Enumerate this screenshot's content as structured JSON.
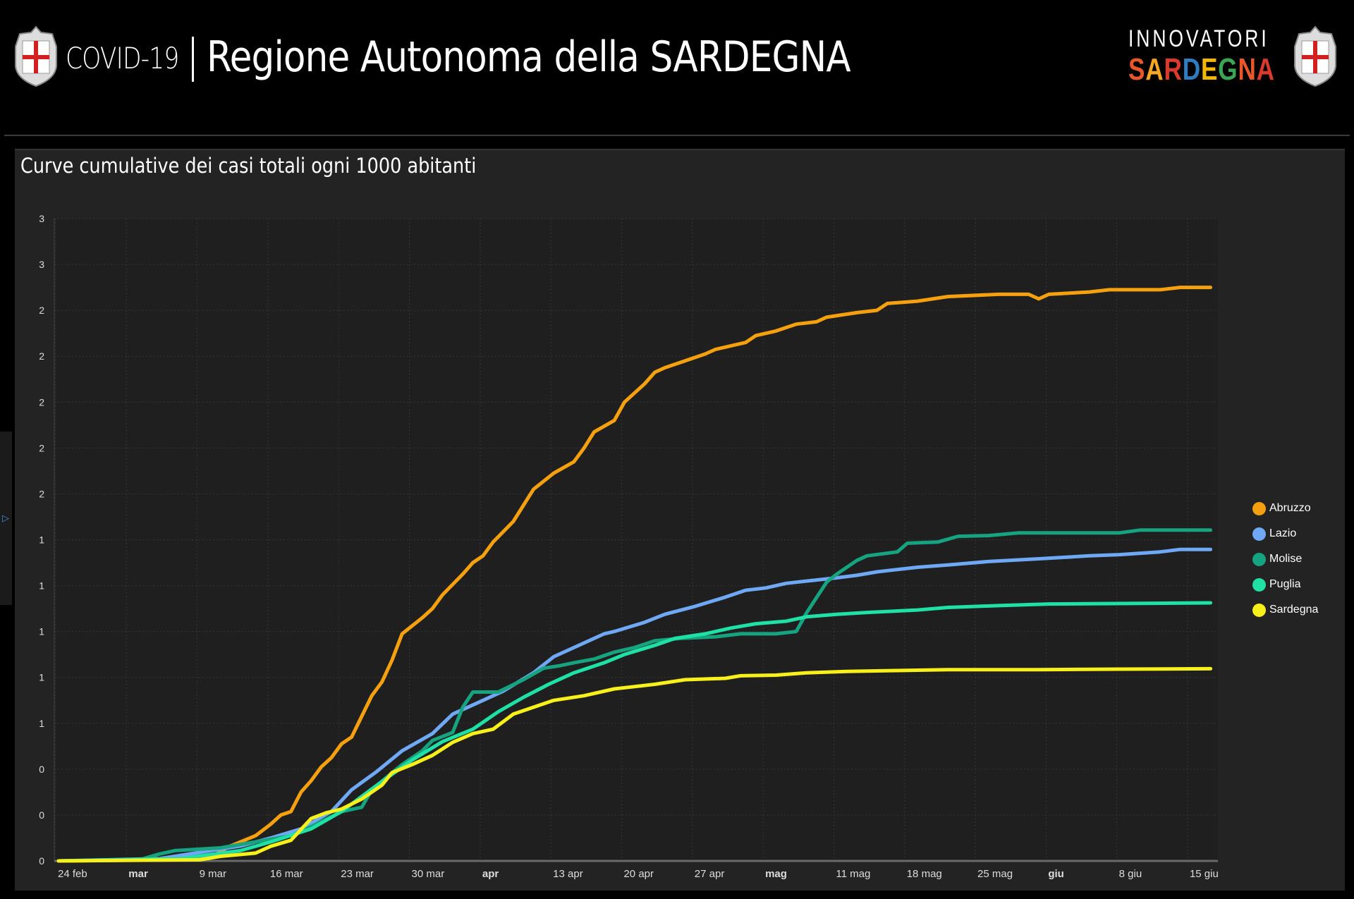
{
  "header": {
    "covid_label": "COVID-19",
    "title": "Regione Autonoma della SARDEGNA",
    "logo_top": "INNOVATORI",
    "logo_bottom": "SARDEGNA",
    "logo_bottom_colors": [
      "#e8572a",
      "#f5a623",
      "#d93a2b",
      "#2f7dc1",
      "#f2b705",
      "#3aa655",
      "#e8572a",
      "#d93a2b"
    ]
  },
  "chart_data": {
    "type": "line",
    "title": "Curve cumulative dei casi totali ogni 1000 abitanti",
    "xlabel": "",
    "ylabel": "",
    "x_unit": "days since 24 feb",
    "xlim": [
      0,
      118
    ],
    "ylim": [
      0,
      2.8
    ],
    "grid": true,
    "legend_position": "right",
    "y_ticks": [
      {
        "value": 0,
        "label": "0"
      },
      {
        "value": 0.2,
        "label": "0"
      },
      {
        "value": 0.4,
        "label": "0"
      },
      {
        "value": 0.6,
        "label": "1"
      },
      {
        "value": 0.8,
        "label": "1"
      },
      {
        "value": 1.0,
        "label": "1"
      },
      {
        "value": 1.2,
        "label": "1"
      },
      {
        "value": 1.4,
        "label": "1"
      },
      {
        "value": 1.6,
        "label": "2"
      },
      {
        "value": 1.8,
        "label": "2"
      },
      {
        "value": 2.0,
        "label": "2"
      },
      {
        "value": 2.2,
        "label": "2"
      },
      {
        "value": 2.4,
        "label": "2"
      },
      {
        "value": 2.6,
        "label": "3"
      },
      {
        "value": 2.8,
        "label": "3"
      }
    ],
    "x_ticks": [
      {
        "day": 0,
        "label": "24 feb",
        "bold": false
      },
      {
        "day": 7,
        "label": "mar",
        "bold": true
      },
      {
        "day": 14,
        "label": "9 mar",
        "bold": false
      },
      {
        "day": 21,
        "label": "16 mar",
        "bold": false
      },
      {
        "day": 28,
        "label": "23 mar",
        "bold": false
      },
      {
        "day": 35,
        "label": "30 mar",
        "bold": false
      },
      {
        "day": 42,
        "label": "apr",
        "bold": true
      },
      {
        "day": 49,
        "label": "13 apr",
        "bold": false
      },
      {
        "day": 56,
        "label": "20 apr",
        "bold": false
      },
      {
        "day": 63,
        "label": "27 apr",
        "bold": false
      },
      {
        "day": 70,
        "label": "mag",
        "bold": true
      },
      {
        "day": 77,
        "label": "11 mag",
        "bold": false
      },
      {
        "day": 84,
        "label": "18 mag",
        "bold": false
      },
      {
        "day": 91,
        "label": "25 mag",
        "bold": false
      },
      {
        "day": 98,
        "label": "giu",
        "bold": true
      },
      {
        "day": 105,
        "label": "8 giu",
        "bold": false
      },
      {
        "day": 112,
        "label": "15 giu",
        "bold": false
      }
    ],
    "series": [
      {
        "name": "Abruzzo",
        "color": "#f5a00f",
        "points": [
          [
            0,
            0
          ],
          [
            10,
            0.005
          ],
          [
            15,
            0.015
          ],
          [
            17,
            0.065
          ],
          [
            19.5,
            0.11
          ],
          [
            21,
            0.16
          ],
          [
            22,
            0.2
          ],
          [
            23,
            0.215
          ],
          [
            24,
            0.3
          ],
          [
            25,
            0.35
          ],
          [
            26,
            0.41
          ],
          [
            27,
            0.45
          ],
          [
            28,
            0.51
          ],
          [
            29,
            0.54
          ],
          [
            30,
            0.63
          ],
          [
            31,
            0.72
          ],
          [
            32,
            0.78
          ],
          [
            33,
            0.875
          ],
          [
            34,
            0.99
          ],
          [
            36,
            1.06
          ],
          [
            37,
            1.1
          ],
          [
            38,
            1.16
          ],
          [
            40,
            1.25
          ],
          [
            41,
            1.3
          ],
          [
            42,
            1.33
          ],
          [
            43,
            1.39
          ],
          [
            45,
            1.48
          ],
          [
            47,
            1.62
          ],
          [
            49,
            1.69
          ],
          [
            51,
            1.74
          ],
          [
            52,
            1.8
          ],
          [
            53,
            1.87
          ],
          [
            55,
            1.92
          ],
          [
            56,
            2.0
          ],
          [
            58,
            2.08
          ],
          [
            59,
            2.13
          ],
          [
            60,
            2.15
          ],
          [
            62,
            2.18
          ],
          [
            64,
            2.21
          ],
          [
            65,
            2.23
          ],
          [
            68,
            2.26
          ],
          [
            69,
            2.29
          ],
          [
            71,
            2.31
          ],
          [
            73,
            2.34
          ],
          [
            75,
            2.35
          ],
          [
            76,
            2.37
          ],
          [
            79,
            2.39
          ],
          [
            81,
            2.4
          ],
          [
            82,
            2.43
          ],
          [
            85,
            2.44
          ],
          [
            88,
            2.46
          ],
          [
            93,
            2.47
          ],
          [
            96,
            2.47
          ],
          [
            97,
            2.45
          ],
          [
            98,
            2.47
          ],
          [
            102,
            2.48
          ],
          [
            104,
            2.49
          ],
          [
            109,
            2.49
          ],
          [
            111,
            2.5
          ],
          [
            114,
            2.5
          ]
        ]
      },
      {
        "name": "Lazio",
        "color": "#6fa8f5",
        "points": [
          [
            0,
            0
          ],
          [
            10,
            0.01
          ],
          [
            18,
            0.065
          ],
          [
            21,
            0.1
          ],
          [
            24,
            0.14
          ],
          [
            27,
            0.215
          ],
          [
            29,
            0.31
          ],
          [
            31.5,
            0.39
          ],
          [
            34,
            0.48
          ],
          [
            37,
            0.555
          ],
          [
            39,
            0.64
          ],
          [
            42,
            0.7
          ],
          [
            44,
            0.74
          ],
          [
            47,
            0.82
          ],
          [
            49,
            0.89
          ],
          [
            52,
            0.95
          ],
          [
            54,
            0.99
          ],
          [
            55,
            1.0
          ],
          [
            58,
            1.04
          ],
          [
            60,
            1.075
          ],
          [
            63,
            1.11
          ],
          [
            66,
            1.15
          ],
          [
            68,
            1.18
          ],
          [
            70,
            1.19
          ],
          [
            72,
            1.21
          ],
          [
            74,
            1.22
          ],
          [
            77,
            1.234
          ],
          [
            79,
            1.245
          ],
          [
            81,
            1.26
          ],
          [
            85,
            1.28
          ],
          [
            88,
            1.29
          ],
          [
            92,
            1.305
          ],
          [
            97,
            1.317
          ],
          [
            102,
            1.33
          ],
          [
            105,
            1.335
          ],
          [
            109,
            1.347
          ],
          [
            111,
            1.358
          ],
          [
            114,
            1.358
          ]
        ]
      },
      {
        "name": "Molise",
        "color": "#16a37f",
        "points": [
          [
            0,
            0
          ],
          [
            8,
            0.005
          ],
          [
            10,
            0.03
          ],
          [
            11.5,
            0.045
          ],
          [
            16,
            0.057
          ],
          [
            19.5,
            0.083
          ],
          [
            23,
            0.11
          ],
          [
            25,
            0.15
          ],
          [
            28,
            0.215
          ],
          [
            30,
            0.234
          ],
          [
            31,
            0.31
          ],
          [
            32.5,
            0.366
          ],
          [
            34,
            0.42
          ],
          [
            36,
            0.48
          ],
          [
            37,
            0.525
          ],
          [
            39,
            0.56
          ],
          [
            40,
            0.67
          ],
          [
            41,
            0.736
          ],
          [
            43.5,
            0.736
          ],
          [
            46,
            0.79
          ],
          [
            48,
            0.84
          ],
          [
            49.5,
            0.85
          ],
          [
            51,
            0.864
          ],
          [
            53,
            0.88
          ],
          [
            55,
            0.91
          ],
          [
            57,
            0.93
          ],
          [
            59,
            0.96
          ],
          [
            61.5,
            0.97
          ],
          [
            65,
            0.977
          ],
          [
            67.5,
            0.99
          ],
          [
            71,
            0.99
          ],
          [
            73,
            1.0
          ],
          [
            74,
            1.08
          ],
          [
            76,
            1.215
          ],
          [
            77,
            1.25
          ],
          [
            79,
            1.31
          ],
          [
            80,
            1.33
          ],
          [
            83,
            1.347
          ],
          [
            84,
            1.385
          ],
          [
            87,
            1.39
          ],
          [
            89,
            1.415
          ],
          [
            92,
            1.418
          ],
          [
            95,
            1.43
          ],
          [
            105,
            1.43
          ],
          [
            107,
            1.442
          ],
          [
            114,
            1.442
          ]
        ]
      },
      {
        "name": "Puglia",
        "color": "#1fe0a5",
        "points": [
          [
            0,
            0
          ],
          [
            12,
            0.01
          ],
          [
            18,
            0.045
          ],
          [
            21,
            0.083
          ],
          [
            25,
            0.14
          ],
          [
            28,
            0.215
          ],
          [
            31.5,
            0.33
          ],
          [
            35,
            0.44
          ],
          [
            38,
            0.52
          ],
          [
            41,
            0.574
          ],
          [
            43.5,
            0.65
          ],
          [
            46,
            0.713
          ],
          [
            48.5,
            0.77
          ],
          [
            51,
            0.82
          ],
          [
            54,
            0.864
          ],
          [
            56,
            0.9
          ],
          [
            59,
            0.94
          ],
          [
            61,
            0.97
          ],
          [
            64,
            0.99
          ],
          [
            66.5,
            1.015
          ],
          [
            69,
            1.034
          ],
          [
            72,
            1.045
          ],
          [
            74,
            1.064
          ],
          [
            77,
            1.075
          ],
          [
            80,
            1.083
          ],
          [
            85,
            1.094
          ],
          [
            88,
            1.105
          ],
          [
            93,
            1.113
          ],
          [
            98,
            1.12
          ],
          [
            114,
            1.125
          ]
        ]
      },
      {
        "name": "Sardegna",
        "color": "#f7f01a",
        "points": [
          [
            0,
            0
          ],
          [
            14,
            0.005
          ],
          [
            16,
            0.02
          ],
          [
            19.5,
            0.034
          ],
          [
            21,
            0.064
          ],
          [
            23,
            0.09
          ],
          [
            25,
            0.185
          ],
          [
            26.5,
            0.21
          ],
          [
            28,
            0.226
          ],
          [
            30,
            0.27
          ],
          [
            32,
            0.33
          ],
          [
            33,
            0.385
          ],
          [
            35,
            0.42
          ],
          [
            37,
            0.46
          ],
          [
            39,
            0.517
          ],
          [
            41,
            0.555
          ],
          [
            43,
            0.574
          ],
          [
            45,
            0.64
          ],
          [
            47,
            0.67
          ],
          [
            49,
            0.7
          ],
          [
            52,
            0.72
          ],
          [
            55,
            0.75
          ],
          [
            59,
            0.77
          ],
          [
            62,
            0.79
          ],
          [
            66,
            0.796
          ],
          [
            67.5,
            0.807
          ],
          [
            71,
            0.81
          ],
          [
            74,
            0.82
          ],
          [
            78,
            0.826
          ],
          [
            83,
            0.83
          ],
          [
            88,
            0.834
          ],
          [
            97,
            0.834
          ],
          [
            105,
            0.836
          ],
          [
            114,
            0.838
          ]
        ]
      }
    ]
  }
}
